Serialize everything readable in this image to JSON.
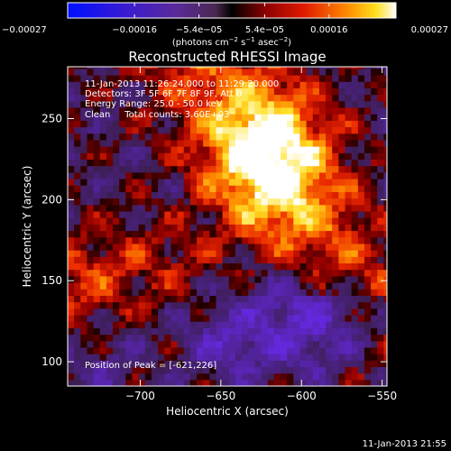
{
  "chart_data": {
    "type": "heatmap",
    "title": "Reconstructed RHESSI Image",
    "xlabel": "Heliocentric X (arcsec)",
    "ylabel": "Heliocentric Y (arcsec)",
    "xlim": [
      -745,
      -547
    ],
    "ylim": [
      85,
      282
    ],
    "x_ticks": [
      -700,
      -650,
      -600,
      -550
    ],
    "y_ticks": [
      100,
      150,
      200,
      250
    ],
    "x_tick_labels": [
      "−700",
      "−650",
      "−600",
      "−550"
    ],
    "y_tick_labels": [
      "100",
      "150",
      "200",
      "250"
    ],
    "colorbar": {
      "range": [
        -0.00027,
        0.00027
      ],
      "ticks": [
        -0.00027,
        -0.00016,
        -5.4e-05,
        5.4e-05,
        0.00016,
        0.00027
      ],
      "tick_labels": [
        "−0.00027",
        "−0.00016",
        "−5.4e−05",
        "5.4e−05",
        "0.00016",
        "0.00027"
      ],
      "unit_prefix": "(photons cm",
      "unit_sup1": "−2",
      "unit_mid": " s",
      "unit_sup2": "−1",
      "unit_mid2": " asec",
      "unit_sup3": "−2",
      "unit_suffix": ")"
    },
    "info_lines": [
      "11-Jan-2013 11:26:24.000 to 11:29:20.000",
      "Detectors: 3F 5F 6F 7F 8F 9F, Att 0",
      "Energy Range: 25.0 - 50.0 keV",
      "Clean     Total counts: 3.60E+03"
    ],
    "peak_label": "Position of Peak = [-621,226]",
    "peak": [
      -621,
      226
    ],
    "timestamp": "11-Jan-2013 21:55",
    "pixel_size_arcsec": 4,
    "colors": {
      "background": "#000000",
      "text": "#ffffff"
    }
  }
}
